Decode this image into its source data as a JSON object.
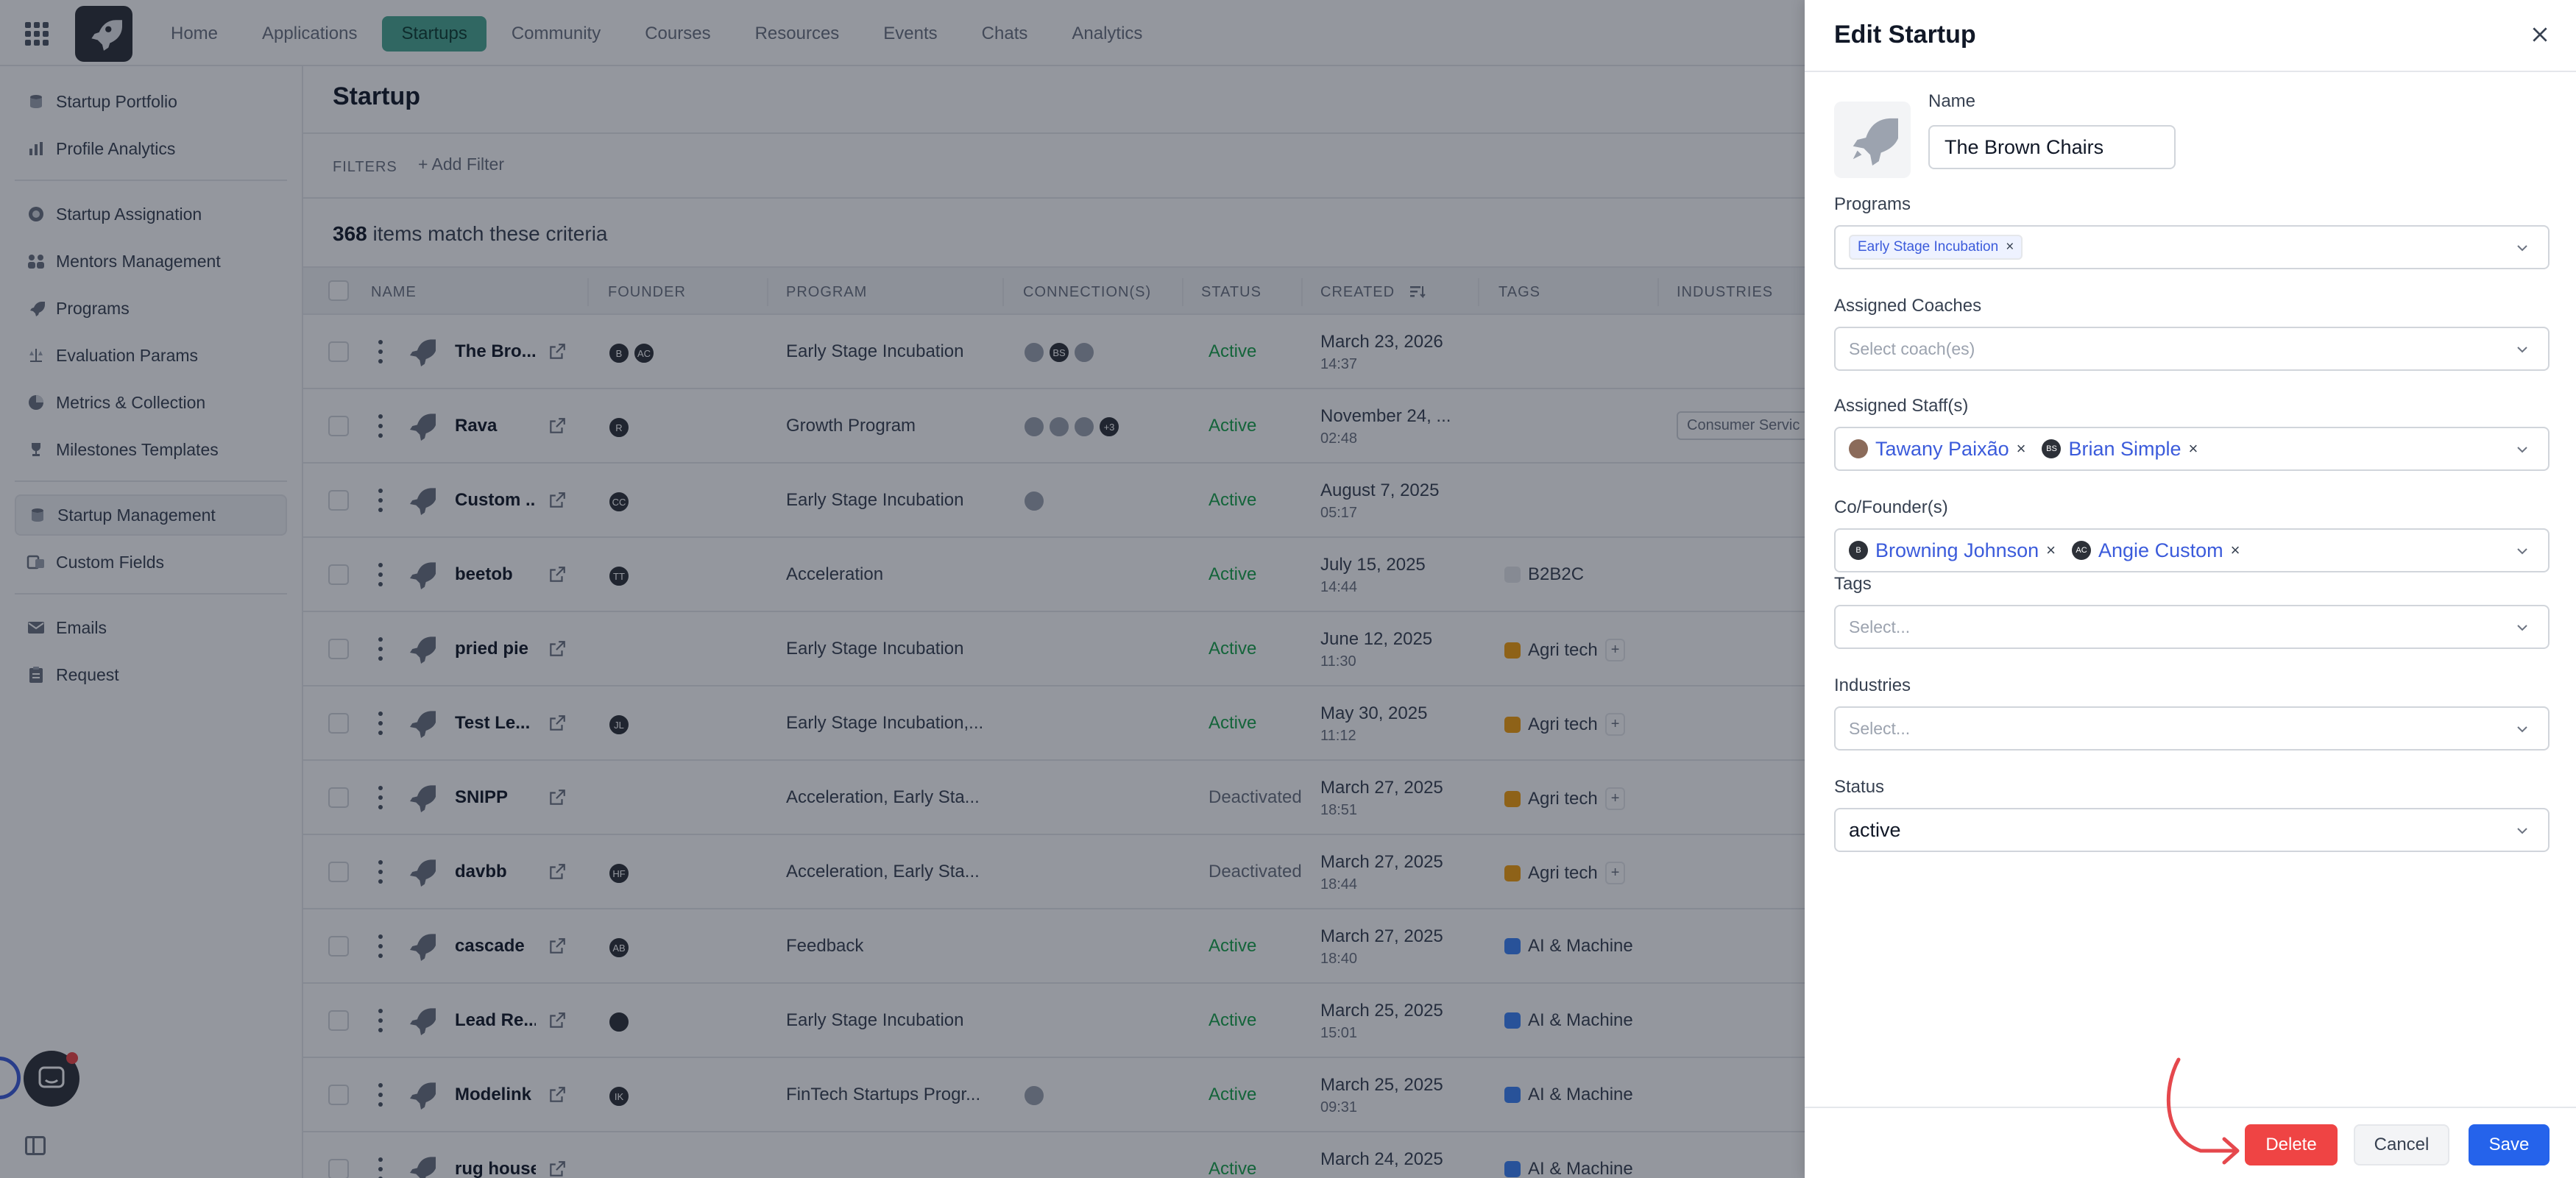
{
  "nav": {
    "items": [
      {
        "label": "Home",
        "active": false
      },
      {
        "label": "Applications",
        "active": false
      },
      {
        "label": "Startups",
        "active": true
      },
      {
        "label": "Community",
        "active": false
      },
      {
        "label": "Courses",
        "active": false
      },
      {
        "label": "Resources",
        "active": false
      },
      {
        "label": "Events",
        "active": false
      },
      {
        "label": "Chats",
        "active": false
      },
      {
        "label": "Analytics",
        "active": false
      }
    ]
  },
  "sidebar": {
    "items": [
      {
        "label": "Startup Portfolio",
        "icon": "database-icon"
      },
      {
        "label": "Profile Analytics",
        "icon": "bar-chart-icon"
      },
      {
        "label": "Startup Assignation",
        "icon": "target-icon"
      },
      {
        "label": "Mentors Management",
        "icon": "users-icon"
      },
      {
        "label": "Programs",
        "icon": "rocket-icon"
      },
      {
        "label": "Evaluation Params",
        "icon": "scale-icon"
      },
      {
        "label": "Metrics & Collection",
        "icon": "pie-chart-icon"
      },
      {
        "label": "Milestones Templates",
        "icon": "trophy-icon"
      },
      {
        "label": "Startup Management",
        "icon": "database-icon",
        "active": true
      },
      {
        "label": "Custom Fields",
        "icon": "fields-icon"
      },
      {
        "label": "Emails",
        "icon": "mail-icon"
      },
      {
        "label": "Request",
        "icon": "clipboard-icon"
      }
    ]
  },
  "main": {
    "title": "Startup",
    "filters_label": "FILTERS",
    "add_filter": "+ Add Filter",
    "count": "368",
    "count_suffix": " items match these criteria",
    "columns": [
      "NAME",
      "FOUNDER",
      "PROGRAM",
      "CONNECTION(S)",
      "STATUS",
      "CREATED",
      "TAGS",
      "INDUSTRIES"
    ],
    "rows": [
      {
        "name": "The Bro...",
        "founders": [
          "B",
          "AC"
        ],
        "program": "Early Stage Incubation",
        "connections": [
          "",
          "BS",
          ""
        ],
        "status": "Active",
        "date": "March 23, 2026",
        "time": "14:37",
        "tag": "",
        "tag_plus": "",
        "industry": ""
      },
      {
        "name": "Rava",
        "founders": [
          "R"
        ],
        "program": "Growth Program",
        "connections": [
          "",
          "",
          "",
          "+3"
        ],
        "status": "Active",
        "date": "November 24, ...",
        "time": "02:48",
        "tag": "",
        "tag_plus": "",
        "industry": "Consumer Servic"
      },
      {
        "name": "Custom ...",
        "founders": [
          "CC"
        ],
        "program": "Early Stage Incubation",
        "connections": [
          ""
        ],
        "status": "Active",
        "date": "August 7, 2025",
        "time": "05:17",
        "tag": "",
        "tag_plus": "",
        "industry": ""
      },
      {
        "name": "beetob",
        "founders": [
          "TT"
        ],
        "program": "Acceleration",
        "connections": [],
        "status": "Active",
        "date": "July 15, 2025",
        "time": "14:44",
        "tag": "B2B2C",
        "tag_plus": "",
        "industry": ""
      },
      {
        "name": "pried pie",
        "founders": [],
        "program": "Early Stage Incubation",
        "connections": [],
        "status": "Active",
        "date": "June 12, 2025",
        "time": "11:30",
        "tag": "Agri tech",
        "tag_plus": "+",
        "industry": ""
      },
      {
        "name": "Test Le...",
        "founders": [
          "JL"
        ],
        "program": "Early Stage Incubation,...",
        "connections": [],
        "status": "Active",
        "date": "May 30, 2025",
        "time": "11:12",
        "tag": "Agri tech",
        "tag_plus": "+",
        "industry": ""
      },
      {
        "name": "SNIPP",
        "founders": [],
        "program": "Acceleration, Early Sta...",
        "connections": [],
        "status": "Deactivated",
        "date": "March 27, 2025",
        "time": "18:51",
        "tag": "Agri tech",
        "tag_plus": "+",
        "industry": ""
      },
      {
        "name": "davbb",
        "founders": [
          "HF"
        ],
        "program": "Acceleration, Early Sta...",
        "connections": [],
        "status": "Deactivated",
        "date": "March 27, 2025",
        "time": "18:44",
        "tag": "Agri tech",
        "tag_plus": "+",
        "industry": ""
      },
      {
        "name": "cascade",
        "founders": [
          "AB"
        ],
        "program": "Feedback",
        "connections": [],
        "status": "Active",
        "date": "March 27, 2025",
        "time": "18:40",
        "tag": "AI & Machine",
        "tag_plus": "",
        "industry": ""
      },
      {
        "name": "Lead Re...",
        "founders": [
          ""
        ],
        "program": "Early Stage Incubation",
        "connections": [],
        "status": "Active",
        "date": "March 25, 2025",
        "time": "15:01",
        "tag": "AI & Machine",
        "tag_plus": "",
        "industry": ""
      },
      {
        "name": "Modelink",
        "founders": [
          "IK"
        ],
        "program": "FinTech Startups Progr...",
        "connections": [
          ""
        ],
        "status": "Active",
        "date": "March 25, 2025",
        "time": "09:31",
        "tag": "AI & Machine",
        "tag_plus": "",
        "industry": ""
      },
      {
        "name": "rug house",
        "founders": [],
        "program": "",
        "connections": [],
        "status": "Active",
        "date": "March 24, 2025",
        "time": "",
        "tag": "AI & Machine",
        "tag_plus": "",
        "industry": ""
      }
    ]
  },
  "drawer": {
    "title": "Edit Startup",
    "name_label": "Name",
    "name_value": "The Brown Chairs",
    "programs_label": "Programs",
    "programs_chips": [
      "Early Stage Incubation"
    ],
    "coaches_label": "Assigned Coaches",
    "coaches_placeholder": "Select coach(es)",
    "staff_label": "Assigned Staff(s)",
    "staff_chips": [
      {
        "label": "Tawany Paixão",
        "initials": ""
      },
      {
        "label": "Brian Simple",
        "initials": "BS"
      }
    ],
    "founders_label": "Co/Founder(s)",
    "founders_chips": [
      {
        "label": "Browning Johnson",
        "initials": "B"
      },
      {
        "label": "Angie Custom",
        "initials": "AC"
      }
    ],
    "tags_label": "Tags",
    "tags_placeholder": "Select...",
    "industries_label": "Industries",
    "industries_placeholder": "Select...",
    "status_label": "Status",
    "status_value": "active",
    "delete_label": "Delete",
    "cancel_label": "Cancel",
    "save_label": "Save"
  },
  "colors": {
    "accent": "#4aa892",
    "primary": "#2563eb",
    "danger": "#ef4444",
    "active_status": "#16a34a"
  }
}
